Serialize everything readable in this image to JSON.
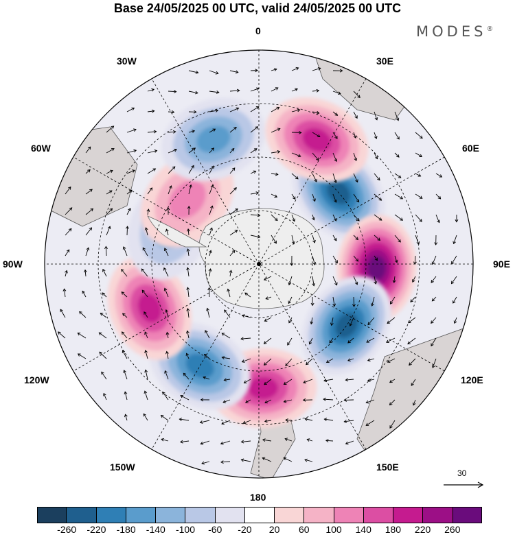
{
  "title": "Base 24/05/2025 00 UTC, valid 24/05/2025 00 UTC",
  "brand": "MODES",
  "brand_mark": "®",
  "longitude_labels": {
    "lon_0": "0",
    "lon_30e": "30E",
    "lon_60e": "60E",
    "lon_90e": "90E",
    "lon_120e": "120E",
    "lon_150e": "150E",
    "lon_180": "180",
    "lon_150w": "150W",
    "lon_120w": "120W",
    "lon_90w": "90W",
    "lon_60w": "60W",
    "lon_30w": "30W"
  },
  "vector_reference": {
    "value": "30"
  },
  "colorbar": {
    "ticks": [
      "-260",
      "-220",
      "-180",
      "-140",
      "-100",
      "-60",
      "-20",
      "20",
      "60",
      "100",
      "140",
      "180",
      "220",
      "260"
    ],
    "colors": [
      "#1b3f5e",
      "#1f5f8e",
      "#2f7fb5",
      "#5a9ccc",
      "#8bb4db",
      "#b9c8e6",
      "#e2e2f0",
      "#ffffff",
      "#f9d6d6",
      "#f5b3c6",
      "#ee83b6",
      "#dc4ea3",
      "#c51b8f",
      "#9c0f86",
      "#6a0c7c"
    ]
  },
  "features": {
    "anomalies": [
      {
        "sign": "negative",
        "strength": 240,
        "lon_deg": 48,
        "colat_frac": 0.5
      },
      {
        "sign": "positive",
        "strength": 260,
        "lon_deg": 92,
        "colat_frac": 0.55
      },
      {
        "sign": "negative",
        "strength": 240,
        "lon_deg": 125,
        "colat_frac": 0.5
      },
      {
        "sign": "positive",
        "strength": 200,
        "lon_deg": 178,
        "colat_frac": 0.58
      },
      {
        "sign": "negative",
        "strength": 200,
        "lon_deg": 210,
        "colat_frac": 0.55
      },
      {
        "sign": "positive",
        "strength": 200,
        "lon_deg": 248,
        "colat_frac": 0.55
      },
      {
        "sign": "negative",
        "strength": 100,
        "lon_deg": 292,
        "colat_frac": 0.45
      },
      {
        "sign": "positive",
        "strength": 100,
        "lon_deg": 312,
        "colat_frac": 0.45
      },
      {
        "sign": "negative",
        "strength": 140,
        "lon_deg": 340,
        "colat_frac": 0.62
      },
      {
        "sign": "positive",
        "strength": 180,
        "lon_deg": 25,
        "colat_frac": 0.64
      }
    ]
  }
}
